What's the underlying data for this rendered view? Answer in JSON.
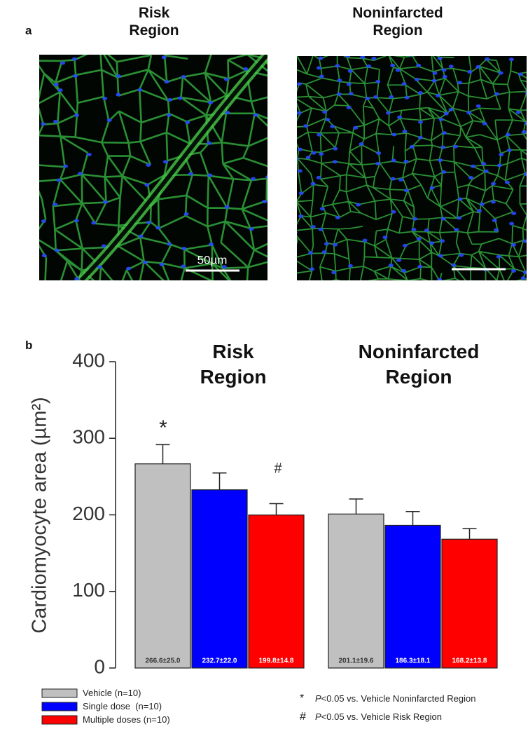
{
  "panel_a": {
    "label": "a",
    "images": [
      {
        "title": "Risk Region",
        "scale_bar": "50µm"
      },
      {
        "title": "Noninfarcted Region"
      }
    ]
  },
  "chart_data": {
    "type": "bar",
    "panel_label": "b",
    "ylabel": "Cardiomyocyte area (µm²)",
    "categories": [
      "Risk Region",
      "Noninfarcted Region"
    ],
    "series": [
      {
        "name": "Vehicle (n=10)",
        "color": "#c0c0c0",
        "values": [
          266.6,
          201.1
        ],
        "errors": [
          25.0,
          19.6
        ],
        "value_labels": [
          "266.6±25.0",
          "201.1±19.6"
        ],
        "label_color": "#333333"
      },
      {
        "name": "Single dose  (n=10)",
        "color": "#0000ff",
        "values": [
          232.7,
          186.3
        ],
        "errors": [
          22.0,
          18.1
        ],
        "value_labels": [
          "232.7±22.0",
          "186.3±18.1"
        ],
        "label_color": "#ffffff"
      },
      {
        "name": "Multiple doses (n=10)",
        "color": "#ff0000",
        "values": [
          199.8,
          168.2
        ],
        "errors": [
          14.8,
          13.8
        ],
        "value_labels": [
          "199.8±14.8",
          "168.2±13.8"
        ],
        "label_color": "#ffffff"
      }
    ],
    "ylim": [
      0,
      400
    ],
    "yticks": [
      0,
      100,
      200,
      300,
      400
    ],
    "annotations": [
      "*",
      "#"
    ],
    "footnotes": [
      {
        "symbol": "*",
        "p": "P",
        "text": "<0.05 vs. Vehicle Noninfarcted Region"
      },
      {
        "symbol": "#",
        "p": "P",
        "text": "<0.05 vs. Vehicle Risk Region"
      }
    ]
  }
}
